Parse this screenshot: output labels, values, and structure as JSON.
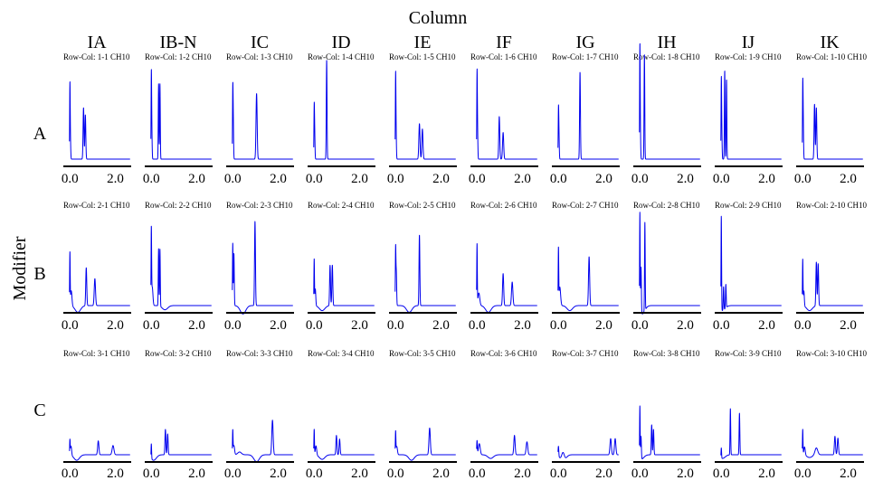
{
  "chart_data": {
    "type": "line",
    "title": "",
    "column_axis_title": "Column",
    "row_axis_title": "Modifier",
    "columns": [
      "IA",
      "IB-N",
      "IC",
      "ID",
      "IE",
      "IF",
      "IG",
      "IH",
      "IJ",
      "IK"
    ],
    "rows": [
      "A",
      "B",
      "C"
    ],
    "xlim": [
      -0.25,
      2.7
    ],
    "x_ticks": [
      0.0,
      2.0
    ],
    "x_tick_labels": [
      "0.0",
      "2.0"
    ],
    "y_axis_visible": false,
    "grid": false,
    "series_color": "#0000ee",
    "panels": [
      {
        "title": "Row-Col: 1-1 CH10",
        "peaks": [
          [
            0.0,
            0.78,
            0.012
          ],
          [
            0.02,
            0.22,
            0.015
          ],
          [
            0.6,
            0.58,
            0.02
          ],
          [
            0.68,
            0.5,
            0.02
          ]
        ]
      },
      {
        "title": "Row-Col: 1-2 CH10",
        "peaks": [
          [
            0.0,
            0.88,
            0.012
          ],
          [
            0.02,
            0.3,
            0.015
          ],
          [
            0.32,
            0.85,
            0.014
          ],
          [
            0.38,
            0.85,
            0.014
          ]
        ]
      },
      {
        "title": "Row-Col: 1-3 CH10",
        "peaks": [
          [
            0.0,
            0.65,
            0.012
          ],
          [
            0.02,
            0.45,
            0.015
          ],
          [
            1.05,
            0.74,
            0.025
          ]
        ]
      },
      {
        "title": "Row-Col: 1-4 CH10",
        "peaks": [
          [
            0.0,
            0.5,
            0.012
          ],
          [
            0.02,
            0.3,
            0.015
          ],
          [
            0.55,
            1.12,
            0.016
          ]
        ]
      },
      {
        "title": "Row-Col: 1-5 CH10",
        "peaks": [
          [
            0.0,
            0.86,
            0.012
          ],
          [
            0.02,
            0.3,
            0.015
          ],
          [
            1.05,
            0.4,
            0.025
          ],
          [
            1.18,
            0.34,
            0.025
          ]
        ]
      },
      {
        "title": "Row-Col: 1-6 CH10",
        "peaks": [
          [
            0.0,
            0.86,
            0.012
          ],
          [
            0.02,
            0.35,
            0.015
          ],
          [
            0.98,
            0.48,
            0.022
          ],
          [
            1.15,
            0.3,
            0.025
          ]
        ]
      },
      {
        "title": "Row-Col: 1-7 CH10",
        "peaks": [
          [
            0.0,
            0.48,
            0.012
          ],
          [
            0.02,
            0.28,
            0.015
          ],
          [
            0.95,
            0.98,
            0.018
          ]
        ]
      },
      {
        "title": "Row-Col: 1-8 CH10",
        "peaks": [
          [
            0.0,
            1.18,
            0.012
          ],
          [
            0.02,
            0.3,
            0.015
          ],
          [
            0.2,
            1.18,
            0.015
          ]
        ]
      },
      {
        "title": "Row-Col: 1-9 CH10",
        "peaks": [
          [
            0.0,
            0.8,
            0.012
          ],
          [
            0.02,
            0.3,
            0.015
          ],
          [
            0.15,
            1.0,
            0.014
          ],
          [
            0.23,
            0.9,
            0.014
          ]
        ]
      },
      {
        "title": "Row-Col: 1-10 CH10",
        "peaks": [
          [
            0.0,
            0.7,
            0.012
          ],
          [
            0.02,
            0.45,
            0.015
          ],
          [
            0.52,
            0.62,
            0.02
          ],
          [
            0.6,
            0.58,
            0.02
          ]
        ]
      },
      {
        "title": "Row-Col: 2-1 CH10",
        "dip": [
          0.35,
          -0.08
        ],
        "peaks": [
          [
            0.0,
            0.62,
            0.012
          ],
          [
            0.06,
            0.18,
            0.03
          ],
          [
            0.72,
            0.45,
            0.022
          ],
          [
            1.1,
            0.32,
            0.028
          ]
        ]
      },
      {
        "title": "Row-Col: 2-2 CH10",
        "dip": [
          0.6,
          -0.05
        ],
        "peaks": [
          [
            0.0,
            0.86,
            0.012
          ],
          [
            0.04,
            0.22,
            0.03
          ],
          [
            0.32,
            0.68,
            0.014
          ],
          [
            0.38,
            0.68,
            0.014
          ]
        ]
      },
      {
        "title": "Row-Col: 2-3 CH10",
        "dip": [
          0.45,
          -0.1
        ],
        "peaks": [
          [
            0.0,
            0.74,
            0.012
          ],
          [
            0.05,
            0.62,
            0.016
          ],
          [
            0.98,
            1.0,
            0.02
          ]
        ]
      },
      {
        "title": "Row-Col: 2-4 CH10",
        "dip": [
          0.35,
          -0.06
        ],
        "peaks": [
          [
            0.0,
            0.55,
            0.012
          ],
          [
            0.05,
            0.2,
            0.02
          ],
          [
            0.7,
            0.48,
            0.02
          ],
          [
            0.8,
            0.48,
            0.02
          ]
        ]
      },
      {
        "title": "Row-Col: 2-5 CH10",
        "dip": [
          0.6,
          -0.08
        ],
        "peaks": [
          [
            0.0,
            0.65,
            0.012
          ],
          [
            0.03,
            0.4,
            0.016
          ],
          [
            1.05,
            0.84,
            0.018
          ]
        ]
      },
      {
        "title": "Row-Col: 2-6 CH10",
        "dip": [
          0.5,
          -0.08
        ],
        "peaks": [
          [
            0.0,
            0.72,
            0.012
          ],
          [
            0.08,
            0.15,
            0.04
          ],
          [
            1.15,
            0.38,
            0.025
          ],
          [
            1.55,
            0.28,
            0.03
          ]
        ]
      },
      {
        "title": "Row-Col: 2-7 CH10",
        "dip": [
          0.5,
          -0.06
        ],
        "peaks": [
          [
            0.0,
            0.65,
            0.012
          ],
          [
            0.06,
            0.22,
            0.035
          ],
          [
            1.35,
            0.58,
            0.025
          ]
        ]
      },
      {
        "title": "Row-Col: 2-8 CH10",
        "dip": [
          0.1,
          -0.1
        ],
        "peaks": [
          [
            0.0,
            1.18,
            0.012
          ],
          [
            0.05,
            0.55,
            0.016
          ],
          [
            0.22,
            1.05,
            0.014
          ]
        ]
      },
      {
        "title": "Row-Col: 2-9 CH10",
        "dip": [
          0.05,
          -0.06
        ],
        "peaks": [
          [
            0.0,
            1.12,
            0.012
          ],
          [
            0.1,
            0.28,
            0.015
          ],
          [
            0.2,
            0.28,
            0.015
          ]
        ]
      },
      {
        "title": "Row-Col: 2-10 CH10",
        "dip": [
          0.3,
          -0.06
        ],
        "peaks": [
          [
            0.0,
            0.55,
            0.012
          ],
          [
            0.05,
            0.18,
            0.02
          ],
          [
            0.6,
            0.52,
            0.02
          ],
          [
            0.68,
            0.5,
            0.02
          ]
        ]
      },
      {
        "title": "Row-Col: 3-1 CH10",
        "dip": [
          0.3,
          -0.12
        ],
        "peaks": [
          [
            0.0,
            0.32,
            0.012
          ],
          [
            0.05,
            0.2,
            0.025
          ],
          [
            1.25,
            0.3,
            0.028
          ],
          [
            1.9,
            0.2,
            0.04
          ]
        ]
      },
      {
        "title": "Row-Col: 3-2 CH10",
        "dip": [
          0.1,
          -0.12
        ],
        "peaks": [
          [
            0.0,
            0.32,
            0.012
          ],
          [
            0.62,
            0.55,
            0.02
          ],
          [
            0.72,
            0.45,
            0.02
          ]
        ]
      },
      {
        "title": "Row-Col: 3-3 CH10",
        "dip": [
          1.05,
          -0.15
        ],
        "peaks": [
          [
            0.0,
            0.5,
            0.012
          ],
          [
            0.05,
            0.2,
            0.03
          ],
          [
            0.3,
            0.06,
            0.08
          ],
          [
            1.75,
            0.75,
            0.03
          ]
        ]
      },
      {
        "title": "Row-Col: 3-4 CH10",
        "dip": [
          0.35,
          -0.1
        ],
        "peaks": [
          [
            0.0,
            0.55,
            0.012
          ],
          [
            0.08,
            0.2,
            0.03
          ],
          [
            0.98,
            0.42,
            0.022
          ],
          [
            1.12,
            0.34,
            0.022
          ]
        ]
      },
      {
        "title": "Row-Col: 3-5 CH10",
        "dip": [
          0.7,
          -0.12
        ],
        "peaks": [
          [
            0.0,
            0.48,
            0.012
          ],
          [
            0.05,
            0.18,
            0.03
          ],
          [
            1.5,
            0.58,
            0.03
          ]
        ]
      },
      {
        "title": "Row-Col: 3-6 CH10",
        "dip": [
          0.6,
          -0.08
        ],
        "peaks": [
          [
            0.0,
            0.3,
            0.015
          ],
          [
            0.1,
            0.24,
            0.04
          ],
          [
            1.65,
            0.42,
            0.028
          ],
          [
            2.2,
            0.28,
            0.035
          ]
        ]
      },
      {
        "title": "Row-Col: 3-7 CH10",
        "dip": [
          0.2,
          -0.15
        ],
        "peaks": [
          [
            0.0,
            0.22,
            0.015
          ],
          [
            0.2,
            0.2,
            0.06
          ],
          [
            2.3,
            0.35,
            0.03
          ],
          [
            2.5,
            0.35,
            0.03
          ]
        ]
      },
      {
        "title": "Row-Col: 3-8 CH10",
        "dip": [
          0.05,
          -0.1
        ],
        "peaks": [
          [
            0.0,
            1.15,
            0.012
          ],
          [
            0.05,
            0.5,
            0.016
          ],
          [
            0.52,
            0.65,
            0.018
          ],
          [
            0.6,
            0.55,
            0.018
          ]
        ]
      },
      {
        "title": "Row-Col: 3-9 CH10",
        "dip": [
          0.05,
          -0.08
        ],
        "peaks": [
          [
            0.0,
            0.22,
            0.012
          ],
          [
            0.4,
            1.0,
            0.014
          ],
          [
            0.8,
            0.9,
            0.016
          ]
        ]
      },
      {
        "title": "Row-Col: 3-10 CH10",
        "dip": [
          0.3,
          -0.06
        ],
        "peaks": [
          [
            0.0,
            0.55,
            0.012
          ],
          [
            0.08,
            0.18,
            0.03
          ],
          [
            0.6,
            0.15,
            0.06
          ],
          [
            1.42,
            0.4,
            0.025
          ],
          [
            1.55,
            0.36,
            0.025
          ]
        ]
      }
    ]
  }
}
